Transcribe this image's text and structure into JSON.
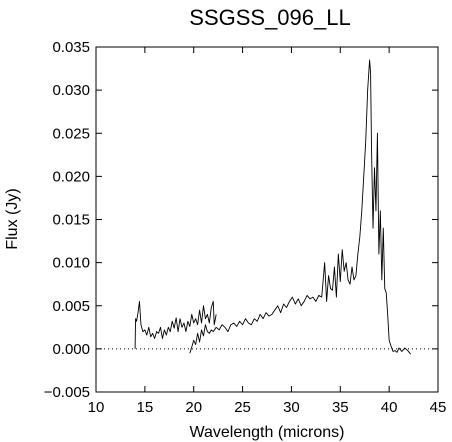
{
  "chart_data": {
    "type": "line",
    "title": "SSGSS_096_LL",
    "xlabel": "Wavelength (microns)",
    "ylabel": "Flux (Jy)",
    "xlim": [
      10,
      45
    ],
    "ylim": [
      -0.005,
      0.035
    ],
    "xticks": [
      10,
      15,
      20,
      25,
      30,
      35,
      40,
      45
    ],
    "yticks": [
      -0.005,
      0.0,
      0.005,
      0.01,
      0.015,
      0.02,
      0.025,
      0.03,
      0.035
    ],
    "ytick_labels": [
      "−0.005",
      "0.000",
      "0.005",
      "0.010",
      "0.015",
      "0.020",
      "0.025",
      "0.030",
      "0.035"
    ],
    "zero_line": "dotted",
    "grid": false,
    "series": [
      {
        "x": [
          14.0,
          14.05,
          14.15,
          14.3,
          14.45,
          14.6,
          14.8,
          15.0,
          15.2,
          15.4,
          15.6,
          15.8,
          16.0,
          16.2,
          16.4,
          16.6,
          16.8,
          17.0,
          17.2,
          17.4,
          17.6,
          17.8,
          18.0,
          18.2,
          18.4,
          18.6,
          18.8,
          19.0,
          19.2,
          19.4,
          19.6,
          19.8,
          20.0,
          20.2,
          20.4,
          20.6,
          20.8,
          21.0,
          21.2,
          21.4,
          21.6,
          21.8,
          22.0,
          22.1,
          22.3
        ],
        "y": [
          0.0,
          0.0035,
          0.0032,
          0.0042,
          0.0055,
          0.0028,
          0.002,
          0.0022,
          0.0016,
          0.0025,
          0.0014,
          0.0018,
          0.0012,
          0.002,
          0.0018,
          0.0025,
          0.0012,
          0.0022,
          0.0016,
          0.0025,
          0.002,
          0.0032,
          0.0024,
          0.0036,
          0.002,
          0.0035,
          0.0025,
          0.003,
          0.002,
          0.0032,
          0.0026,
          0.004,
          0.003,
          0.0035,
          0.0028,
          0.0045,
          0.003,
          0.005,
          0.0035,
          0.004,
          0.003,
          0.0048,
          0.0055,
          0.0028,
          0.004
        ]
      },
      {
        "x": [
          19.6,
          19.8,
          20.0,
          20.2,
          20.4,
          20.6,
          20.8,
          21.0,
          21.2,
          21.4,
          21.6,
          21.8,
          22.0,
          22.3,
          22.6,
          22.9,
          23.2,
          23.5,
          23.8,
          24.1,
          24.4,
          24.7,
          25.0,
          25.3,
          25.6,
          25.9,
          26.2,
          26.5,
          26.8,
          27.1,
          27.4,
          27.7,
          28.0,
          28.3,
          28.6,
          28.9,
          29.2,
          29.5,
          29.8,
          30.1,
          30.4,
          30.7,
          31.0,
          31.3,
          31.6,
          31.9,
          32.2,
          32.5,
          32.8,
          33.1,
          33.4,
          33.6,
          33.8,
          34.0,
          34.2,
          34.4,
          34.6,
          34.8,
          35.0,
          35.2,
          35.4,
          35.6,
          35.8,
          36.0,
          36.2,
          36.4,
          36.6,
          36.8,
          37.0,
          37.2,
          37.4,
          37.6,
          37.8,
          38.0,
          38.1,
          38.2,
          38.35,
          38.5,
          38.65,
          38.8,
          38.95,
          39.1,
          39.25,
          39.4,
          39.55,
          39.7,
          39.85,
          40.0,
          40.2,
          40.4,
          40.6,
          40.8,
          41.0,
          41.3,
          41.6,
          41.9,
          42.2
        ],
        "y": [
          -0.0005,
          0.0002,
          0.001,
          0.0005,
          0.0018,
          0.0008,
          0.0022,
          0.0015,
          0.0028,
          0.002,
          0.0018,
          0.0022,
          0.002,
          0.0025,
          0.0022,
          0.0028,
          0.0025,
          0.002,
          0.0028,
          0.003,
          0.0026,
          0.0032,
          0.0028,
          0.0035,
          0.003,
          0.0028,
          0.0035,
          0.0032,
          0.004,
          0.0035,
          0.0042,
          0.0038,
          0.004,
          0.0045,
          0.005,
          0.0042,
          0.0052,
          0.0048,
          0.0055,
          0.006,
          0.0052,
          0.0058,
          0.005,
          0.0055,
          0.0062,
          0.0058,
          0.006,
          0.0055,
          0.0062,
          0.006,
          0.01,
          0.0055,
          0.0085,
          0.007,
          0.0068,
          0.0095,
          0.006,
          0.011,
          0.0078,
          0.0115,
          0.009,
          0.01,
          0.008,
          0.0075,
          0.0095,
          0.008,
          0.0085,
          0.011,
          0.013,
          0.016,
          0.02,
          0.024,
          0.03,
          0.0335,
          0.032,
          0.023,
          0.014,
          0.021,
          0.016,
          0.025,
          0.011,
          0.016,
          0.008,
          0.014,
          0.007,
          0.0065,
          0.004,
          0.001,
          0.0003,
          -0.0003,
          -0.0002,
          -0.0004,
          0.0001,
          -0.0003,
          0.0001,
          -0.0002,
          -0.0006
        ]
      }
    ]
  }
}
